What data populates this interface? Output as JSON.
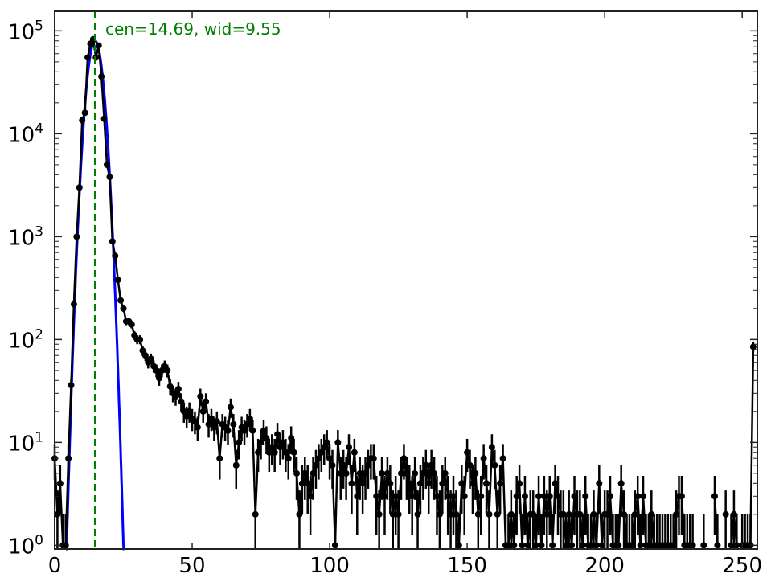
{
  "chart_data": {
    "type": "scatter",
    "title": "",
    "xlabel": "",
    "ylabel": "",
    "xlim": [
      0,
      255.5
    ],
    "ylim": [
      0.92,
      155000
    ],
    "yscale": "log",
    "grid": false,
    "x_ticks": [
      "0",
      "50",
      "100",
      "150",
      "200",
      "250"
    ],
    "y_ticks": [
      {
        "base": "10",
        "exp": "0"
      },
      {
        "base": "10",
        "exp": "1"
      },
      {
        "base": "10",
        "exp": "2"
      },
      {
        "base": "10",
        "exp": "3"
      },
      {
        "base": "10",
        "exp": "4"
      },
      {
        "base": "10",
        "exp": "5"
      }
    ],
    "annotation": "cen=14.69, wid=9.55",
    "fit_center": 14.69,
    "fit_width": 9.55,
    "colors": {
      "data": "#000000",
      "fit": "#0000ff",
      "center_line": "#007f00",
      "annotation": "#007f00"
    },
    "series": [
      {
        "style": "black markers with sqrt(N) error bars",
        "x": [
          0,
          1,
          2,
          3,
          4,
          5,
          6,
          7,
          8,
          9,
          10,
          11,
          12,
          13,
          14,
          15,
          16,
          17,
          18,
          19,
          20,
          21,
          22,
          23,
          24,
          25,
          26,
          27,
          28,
          29,
          30,
          31,
          32,
          33,
          34,
          35,
          36,
          37,
          38,
          39,
          40,
          41,
          42,
          43,
          44,
          45,
          46,
          47,
          48,
          49,
          50,
          51,
          52,
          53,
          54,
          55,
          56,
          57,
          58,
          59,
          60,
          61,
          62,
          63,
          64,
          65,
          66,
          67,
          68,
          69,
          70,
          71,
          72,
          73,
          74,
          75,
          76,
          77,
          78,
          79,
          80,
          81,
          82,
          83,
          84,
          85,
          86,
          87,
          88,
          89,
          90,
          91,
          92,
          93,
          94,
          95,
          96,
          97,
          98,
          99,
          100,
          101,
          102,
          103,
          104,
          105,
          106,
          107,
          108,
          109,
          110,
          111,
          112,
          113,
          114,
          115,
          116,
          117,
          118,
          119,
          120,
          121,
          122,
          123,
          124,
          125,
          126,
          127,
          128,
          129,
          130,
          131,
          132,
          133,
          134,
          135,
          136,
          137,
          138,
          139,
          140,
          141,
          142,
          143,
          144,
          145,
          146,
          147,
          148,
          149,
          150,
          151,
          152,
          153,
          154,
          155,
          156,
          157,
          158,
          159,
          160,
          161,
          162,
          163,
          164,
          165,
          166,
          167,
          168,
          169,
          170,
          171,
          172,
          173,
          174,
          175,
          176,
          177,
          178,
          179,
          180,
          181,
          182,
          183,
          184,
          185,
          186,
          187,
          188,
          189,
          190,
          191,
          192,
          193,
          194,
          195,
          196,
          197,
          198,
          199,
          200,
          201,
          202,
          203,
          204,
          205,
          206,
          207,
          208,
          209,
          210,
          211,
          212,
          213,
          214,
          215,
          216,
          217,
          218,
          219,
          220,
          221,
          222,
          223,
          224,
          225,
          226,
          227,
          228,
          229,
          230,
          231,
          232,
          233,
          234,
          235,
          236,
          237,
          238,
          239,
          240,
          241,
          242,
          243,
          244,
          245,
          246,
          247,
          248,
          249,
          250,
          251,
          252,
          253,
          254
        ],
        "y": [
          7,
          2,
          4,
          1,
          1,
          7,
          36,
          220,
          1000,
          3000,
          13500,
          16000,
          55000,
          75000,
          83000,
          55000,
          72000,
          36000,
          14000,
          5000,
          3800,
          900,
          650,
          380,
          240,
          200,
          150,
          150,
          140,
          110,
          100,
          100,
          78,
          70,
          60,
          65,
          55,
          50,
          42,
          50,
          55,
          50,
          35,
          30,
          28,
          33,
          25,
          20,
          18,
          20,
          17,
          16,
          14,
          28,
          20,
          25,
          15,
          17,
          14,
          16,
          7,
          15,
          14,
          13,
          22,
          15,
          6,
          10,
          14,
          13,
          15,
          17,
          13,
          2,
          8,
          10,
          13,
          11,
          8,
          9,
          8,
          12,
          9,
          10,
          8,
          7,
          11,
          8,
          5,
          2,
          4,
          5,
          4,
          3,
          5,
          6,
          7,
          8,
          9,
          10,
          7,
          6,
          1,
          10,
          5,
          6,
          5,
          9,
          4,
          8,
          3,
          5,
          4,
          5,
          6,
          7,
          7,
          3,
          2,
          5,
          3,
          5,
          4,
          2,
          3,
          2,
          5,
          7,
          5,
          4,
          3,
          5,
          2,
          4,
          5,
          6,
          4,
          6,
          5,
          3,
          2,
          4,
          5,
          3,
          2,
          3,
          2,
          1,
          4,
          3,
          8,
          6,
          4,
          5,
          2,
          3,
          7,
          4,
          2,
          9,
          6,
          2,
          4,
          7,
          1,
          1,
          2,
          1,
          3,
          4,
          1,
          3,
          1,
          2,
          2,
          1,
          3,
          1,
          3,
          2,
          3,
          1,
          4,
          3,
          2,
          2,
          1,
          2,
          1,
          3,
          2,
          2,
          1,
          3,
          1,
          1,
          2,
          1,
          4,
          1,
          2,
          2,
          3,
          1,
          1,
          1,
          4,
          2,
          1,
          1,
          1,
          2,
          3,
          1,
          3,
          1,
          1,
          2,
          1,
          1,
          1,
          1,
          1,
          1,
          1,
          1,
          2,
          3,
          3,
          1,
          1,
          1,
          1,
          0,
          0,
          0,
          1,
          0,
          0,
          0,
          3,
          1,
          0,
          0,
          2,
          0,
          1,
          2,
          1,
          0,
          1,
          1,
          1,
          1,
          85
        ]
      },
      {
        "style": "blue gaussian fit curve"
      }
    ]
  }
}
